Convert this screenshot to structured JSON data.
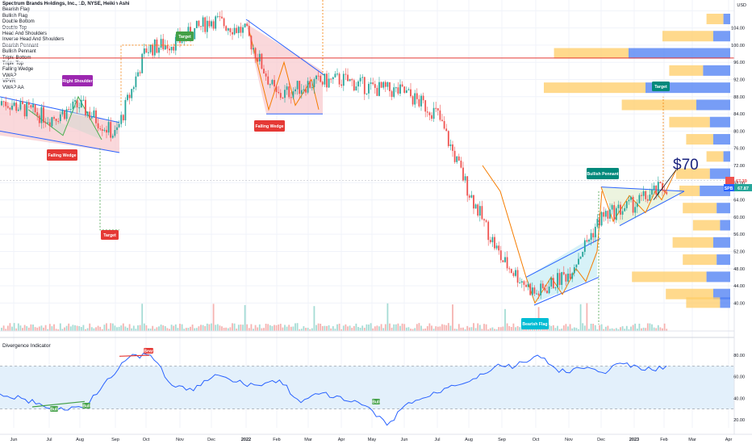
{
  "header": {
    "title": "Spectrum Brands Holdings, Inc., 1D, NYSE, Heikin Ashi",
    "currency": "USD",
    "indicator_list": [
      "Bearish Flag",
      "Bullish Flag",
      "Double Bottom",
      "Double Top",
      "Head And Shoulders",
      "Inverse Head And Shoulders",
      "Bearish Pennant",
      "Bullish Pennant",
      "Triple Bottom",
      "Triple Top",
      "Falling Wedge",
      "VWAP",
      "VPVR",
      "VWAP AA"
    ]
  },
  "annotations": {
    "right_shoulder": "Right Shoulder",
    "falling_wedge_1": "Falling Wedge",
    "falling_wedge_2": "Falling Wedge",
    "target_1": "Target",
    "target_2": "Target",
    "target_3": "Target",
    "bullish_pennant": "Bullish Pennant",
    "bearish_flag": "Bearish Flag",
    "price_callout": "$70",
    "price_badge": "67.39",
    "spb_label": "SPB",
    "spb_price": "67.87"
  },
  "oscillator": {
    "title": "Divergence Indicator",
    "top_label": "Bear",
    "bull_labels": [
      "Bull",
      "Bull",
      "Bull"
    ]
  },
  "colors": {
    "up": "#26a69a",
    "down": "#ef5350",
    "pattern_blue": "#2962ff",
    "pattern_orange": "#f57c00",
    "wedge_fill": "#f8c8cc",
    "flag_fill": "#cdeff6",
    "vp_yellow": "#ffcc66",
    "vp_blue": "#4a7cf3",
    "osc_line": "#2962ff",
    "osc_band": "#e3f0fb"
  },
  "chart_data": [
    {
      "type": "candlestick",
      "title": "Spectrum Brands Holdings, Inc., 1D, NYSE, Heikin Ashi",
      "xlabel": "",
      "ylabel": "USD",
      "x_ticks": [
        "Jun",
        "Jul",
        "Aug",
        "Sep",
        "Oct",
        "Nov",
        "Dec",
        "2022",
        "Feb",
        "Mar",
        "Apr",
        "May",
        "Jun",
        "Jul",
        "Aug",
        "Sep",
        "Oct",
        "Nov",
        "Dec",
        "2023",
        "Feb",
        "Mar",
        "Apr"
      ],
      "y_ticks": [
        40,
        44,
        48,
        52,
        56,
        60,
        64,
        68,
        72,
        76,
        80,
        84,
        88,
        92,
        96,
        100,
        104,
        108
      ],
      "ylim": [
        38,
        109
      ],
      "series": [
        {
          "name": "price",
          "x": [
            "Jun",
            "Jul",
            "Aug",
            "Sep",
            "Oct",
            "Nov",
            "Dec",
            "2022",
            "Feb",
            "Mar",
            "Apr",
            "May",
            "Jun",
            "Jul",
            "Aug",
            "Sep",
            "Oct",
            "Nov",
            "Dec",
            "2023",
            "Feb"
          ],
          "values": [
            86,
            83,
            86,
            79,
            99,
            101,
            106,
            103,
            88,
            91,
            92,
            90,
            89,
            84,
            66,
            50,
            42,
            47,
            60,
            63,
            67
          ]
        }
      ],
      "last_price": 67.87,
      "grid": true
    },
    {
      "type": "line",
      "title": "Divergence Indicator",
      "x_ticks": [
        "Jun",
        "Jul",
        "Aug",
        "Sep",
        "Oct",
        "Nov",
        "Dec",
        "2022",
        "Feb",
        "Mar",
        "Apr",
        "May",
        "Jun",
        "Jul",
        "Aug",
        "Sep",
        "Oct",
        "Nov",
        "Dec",
        "2023",
        "Feb",
        "Mar",
        "Apr"
      ],
      "y_ticks": [
        20,
        40,
        60,
        80
      ],
      "ylim": [
        14,
        86
      ],
      "band": [
        30,
        70
      ],
      "series": [
        {
          "name": "Divergence Indicator",
          "values": [
            44,
            40,
            33,
            29,
            34,
            58,
            78,
            80,
            52,
            47,
            62,
            55,
            52,
            57,
            36,
            45,
            38,
            33,
            15,
            36,
            42,
            52,
            58,
            69,
            70,
            80,
            64,
            68,
            64,
            72,
            66,
            70
          ]
        }
      ]
    }
  ]
}
